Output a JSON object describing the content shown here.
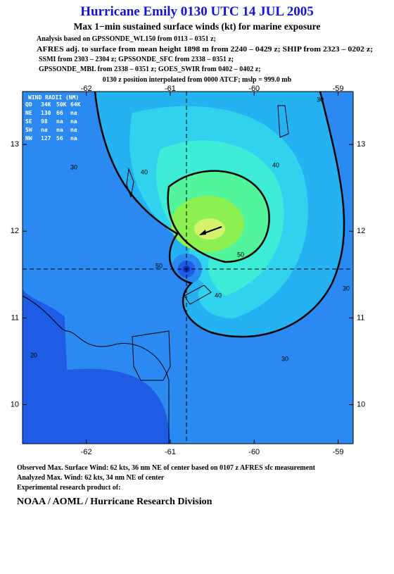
{
  "header": {
    "title": "Hurricane Emily 0130 UTC 14 JUL 2005",
    "subtitle": "Max 1−min sustained surface winds (kt) for marine exposure",
    "analysis": [
      "Analysis based on  GPSSONDE_WL150 from 0113 – 0351 z;",
      "AFRES adj. to surface from mean height 1898 m from 2240 – 0429 z;  SHIP from 2323 – 0202 z;",
      "SSMI from 2303 – 2304 z;  GPSSONDE_SFC from 2338 – 0351 z;",
      "GPSSONDE_MBL from 2338 – 0351 z;  GOES_SWIR from 0402 – 0402 z;",
      "0130 z position interpolated from 0000 ATCF; mslp = 999.0 mb"
    ]
  },
  "map": {
    "xlim": [
      -62.76,
      -58.82
    ],
    "ylim": [
      9.55,
      13.61
    ],
    "xticks": [
      -62,
      -61,
      -60,
      -59
    ],
    "yticks": [
      10,
      11,
      12,
      13
    ],
    "wind_radii": {
      "title": "WIND RADII (NM)",
      "columns": [
        "QD",
        "34K",
        "50K",
        "64K"
      ],
      "rows": [
        [
          "NE",
          130,
          66,
          "na"
        ],
        [
          "SE",
          98,
          "na",
          "na"
        ],
        [
          "SW",
          "na",
          "na",
          "na"
        ],
        [
          "NW",
          127,
          56,
          "na"
        ]
      ]
    },
    "contour_labels": [
      30,
      30,
      40,
      40,
      50,
      50,
      40,
      30,
      30,
      20
    ]
  },
  "footer": {
    "observed": "Observed Max. Surface Wind: 62 kts, 36 nm NE of center based on 0107 z AFRES sfc measurement",
    "analyzed": "Analyzed Max. Wind: 62 kts, 34 nm NE of center",
    "product": "Experimental research product of:",
    "org": "NOAA / AOML / Hurricane Research Division"
  }
}
